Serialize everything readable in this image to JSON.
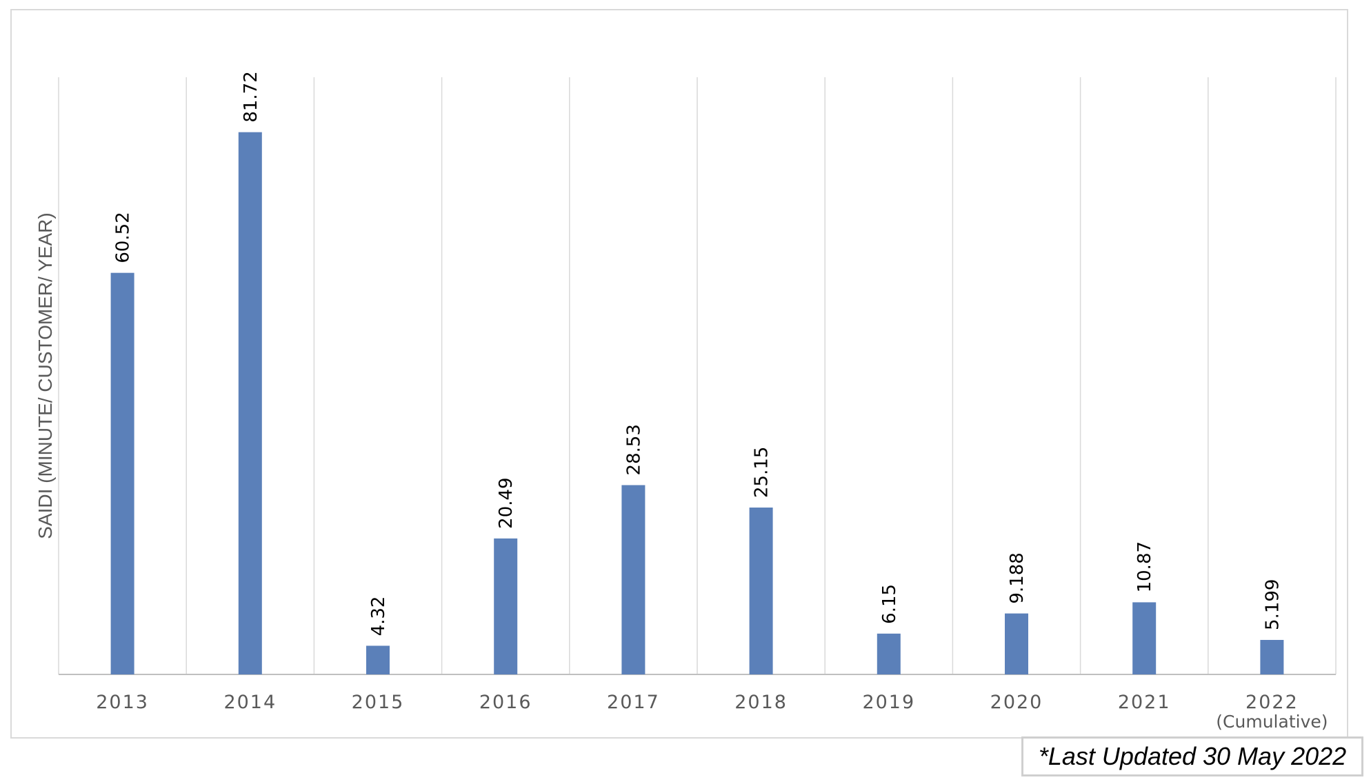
{
  "chart_data": {
    "type": "bar",
    "title": "",
    "xlabel": "",
    "ylabel": "SAIDI (MINUTE/ CUSTOMER/ YEAR)",
    "categories": [
      "2013",
      "2014",
      "2015",
      "2016",
      "2017",
      "2018",
      "2019",
      "2020",
      "2021",
      "2022"
    ],
    "category_sublabels": [
      "",
      "",
      "",
      "",
      "",
      "",
      "",
      "",
      "",
      "(Cumulative)"
    ],
    "values": [
      60.52,
      81.72,
      4.32,
      20.49,
      28.53,
      25.15,
      6.15,
      9.188,
      10.87,
      5.199
    ],
    "data_labels": [
      "60.52",
      "81.72",
      "4.32",
      "20.49",
      "28.53",
      "25.15",
      "6.15",
      "9.188",
      "10.87",
      "5.199"
    ],
    "ylim": [
      0,
      90
    ],
    "grid": "vertical",
    "legend": "none",
    "bar_color": "#5b80b9"
  },
  "note": "*Last Updated 30 May 2022"
}
